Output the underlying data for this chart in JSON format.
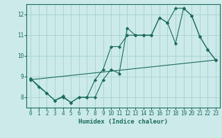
{
  "xlabel": "Humidex (Indice chaleur)",
  "bg_color": "#cceaea",
  "grid_color": "#aad4d4",
  "line_color": "#1a6b5a",
  "xlim": [
    -0.5,
    23.5
  ],
  "ylim": [
    7.5,
    12.5
  ],
  "yticks": [
    8,
    9,
    10,
    11,
    12
  ],
  "xticks": [
    0,
    1,
    2,
    3,
    4,
    5,
    6,
    7,
    8,
    9,
    10,
    11,
    12,
    13,
    14,
    15,
    16,
    17,
    18,
    19,
    20,
    21,
    22,
    23
  ],
  "series1_x": [
    0,
    1,
    2,
    3,
    4,
    5,
    6,
    7,
    8,
    9,
    10,
    11,
    12,
    13,
    14,
    15,
    16,
    17,
    18,
    19,
    20,
    21,
    22,
    23
  ],
  "series1_y": [
    8.9,
    8.5,
    8.2,
    7.85,
    8.0,
    7.75,
    8.0,
    8.0,
    8.0,
    8.85,
    9.35,
    9.15,
    11.35,
    11.0,
    11.0,
    11.0,
    11.85,
    11.6,
    10.6,
    12.3,
    11.95,
    10.95,
    10.3,
    9.8
  ],
  "series2_x": [
    0,
    2,
    3,
    4,
    5,
    6,
    7,
    8,
    9,
    10,
    11,
    12,
    13,
    14,
    15,
    16,
    17,
    18,
    19,
    20,
    21,
    22,
    23
  ],
  "series2_y": [
    8.9,
    8.2,
    7.85,
    8.05,
    7.75,
    8.0,
    8.0,
    8.85,
    9.35,
    10.45,
    10.45,
    11.0,
    11.0,
    11.0,
    11.0,
    11.85,
    11.6,
    12.3,
    12.3,
    11.95,
    10.95,
    10.3,
    9.8
  ],
  "series3_x": [
    0,
    23
  ],
  "series3_y": [
    8.85,
    9.8
  ]
}
